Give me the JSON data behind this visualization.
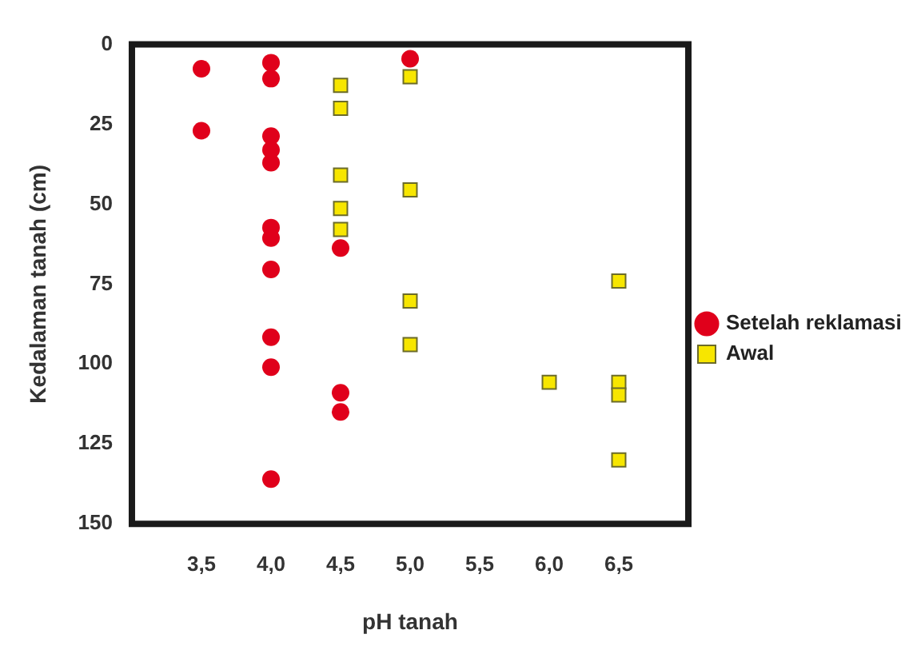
{
  "chart_data": {
    "type": "scatter",
    "xlabel": "pH tanah",
    "ylabel": "Kedalaman tanah (cm)",
    "xlim": [
      3,
      7
    ],
    "ylim": [
      150,
      0
    ],
    "xticks": [
      {
        "value": 3.5,
        "label": "3,5"
      },
      {
        "value": 4,
        "label": "4,0"
      },
      {
        "value": 4.5,
        "label": "4,5"
      },
      {
        "value": 5,
        "label": "5,0"
      },
      {
        "value": 5.5,
        "label": "5,5"
      },
      {
        "value": 6,
        "label": "6,0"
      },
      {
        "value": 6.5,
        "label": "6,5"
      }
    ],
    "yticks": [
      0,
      25,
      50,
      75,
      100,
      125,
      150
    ],
    "grid": false,
    "legend": "right",
    "series": [
      {
        "name": "Setelah reklamasi",
        "color": "#e0001b",
        "marker": "circle",
        "x": [
          3.5,
          3.5,
          4,
          4,
          4,
          4,
          4,
          4,
          4,
          4,
          4,
          4,
          4,
          4.5,
          4.5,
          4.5,
          5
        ],
        "values": [
          7.6,
          27,
          5.7,
          10.7,
          28.7,
          33,
          37,
          57.3,
          60.6,
          70.4,
          91.6,
          101,
          136,
          63.7,
          109,
          115,
          4.5
        ]
      },
      {
        "name": "Awal",
        "color": "#f7e600",
        "marker": "square",
        "x": [
          4.5,
          4.5,
          4.5,
          4.5,
          4.5,
          5,
          5,
          5,
          5,
          6,
          6.5,
          6.5,
          6.5,
          6.5
        ],
        "values": [
          12.8,
          20,
          40.9,
          51.3,
          57.9,
          10.1,
          45.5,
          80.3,
          93.9,
          105.7,
          74,
          105.7,
          109.7,
          130
        ]
      }
    ]
  }
}
